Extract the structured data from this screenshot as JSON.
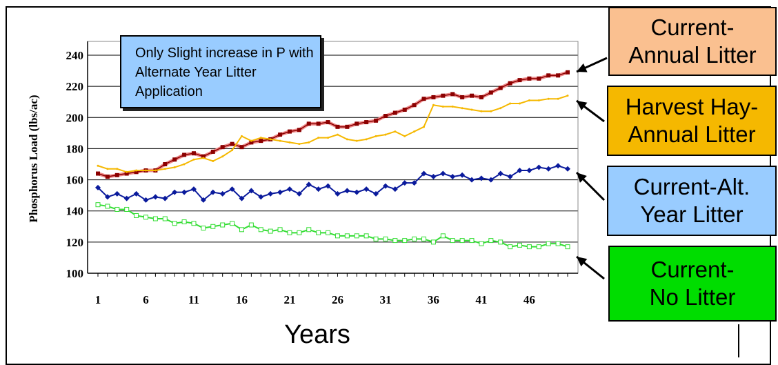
{
  "chart_data": {
    "type": "line",
    "xlabel": "Years",
    "ylabel": "Phosphorus Load (lbs/ac)",
    "ylim": [
      100,
      240
    ],
    "yticks": [
      100,
      120,
      140,
      160,
      180,
      200,
      220,
      240
    ],
    "xtick_labels": [
      "1",
      "6",
      "11",
      "16",
      "21",
      "26",
      "31",
      "36",
      "41",
      "46"
    ],
    "x": [
      1,
      2,
      3,
      4,
      5,
      6,
      7,
      8,
      9,
      10,
      11,
      12,
      13,
      14,
      15,
      16,
      17,
      18,
      19,
      20,
      21,
      22,
      23,
      24,
      25,
      26,
      27,
      28,
      29,
      30,
      31,
      32,
      33,
      34,
      35,
      36,
      37,
      38,
      39,
      40,
      41,
      42,
      43,
      44,
      45,
      46,
      47,
      48,
      49,
      50
    ],
    "grid": "horizontal",
    "series": [
      {
        "name": "Current-Annual Litter",
        "color": "#8b0000",
        "values": [
          164,
          162,
          163,
          164,
          165,
          166,
          166,
          170,
          173,
          176,
          177,
          175,
          178,
          181,
          183,
          181,
          184,
          185,
          186,
          189,
          191,
          192,
          196,
          196,
          197,
          194,
          194,
          196,
          197,
          198,
          201,
          203,
          205,
          208,
          212,
          213,
          214,
          215,
          213,
          214,
          213,
          216,
          219,
          222,
          224,
          225,
          225,
          227,
          227,
          229
        ]
      },
      {
        "name": "Harvest Hay-Annual Litter",
        "color": "#f5b800",
        "values": [
          169,
          167,
          167,
          165,
          166,
          166,
          166,
          167,
          168,
          170,
          173,
          174,
          172,
          175,
          179,
          188,
          185,
          187,
          186,
          185,
          184,
          183,
          184,
          187,
          187,
          189,
          186,
          185,
          186,
          188,
          189,
          191,
          188,
          191,
          194,
          208,
          207,
          207,
          206,
          205,
          204,
          204,
          206,
          209,
          209,
          211,
          211,
          212,
          212,
          214
        ]
      },
      {
        "name": "Current-Alt. Year Litter",
        "color": "#0a1a9c",
        "values": [
          155,
          149,
          151,
          148,
          151,
          147,
          149,
          148,
          152,
          152,
          154,
          147,
          152,
          151,
          154,
          148,
          153,
          149,
          151,
          152,
          154,
          151,
          157,
          154,
          156,
          151,
          153,
          152,
          154,
          151,
          156,
          154,
          158,
          158,
          164,
          162,
          164,
          162,
          163,
          160,
          161,
          160,
          164,
          162,
          166,
          166,
          168,
          167,
          169,
          167
        ]
      },
      {
        "name": "Current-No Litter",
        "color": "#33dd33",
        "values": [
          144,
          143,
          141,
          141,
          137,
          136,
          135,
          135,
          132,
          133,
          132,
          129,
          130,
          131,
          132,
          128,
          131,
          128,
          127,
          128,
          126,
          126,
          128,
          126,
          126,
          124,
          124,
          124,
          124,
          122,
          122,
          121,
          121,
          122,
          122,
          120,
          124,
          121,
          121,
          121,
          119,
          121,
          120,
          117,
          118,
          117,
          117,
          119,
          119,
          117
        ]
      }
    ],
    "annotation": "Only Slight increase in P with Alternate Year Litter Application",
    "legend": [
      {
        "label_lines": [
          "Current-",
          "Annual Litter"
        ],
        "bg": "#fac090"
      },
      {
        "label_lines": [
          "Harvest Hay-",
          "Annual Litter"
        ],
        "bg": "#f5b800"
      },
      {
        "label_lines": [
          "Current-Alt.",
          "Year Litter"
        ],
        "bg": "#99ccff"
      },
      {
        "label_lines": [
          "Current-",
          "No Litter"
        ],
        "bg": "#00dd00"
      }
    ]
  }
}
